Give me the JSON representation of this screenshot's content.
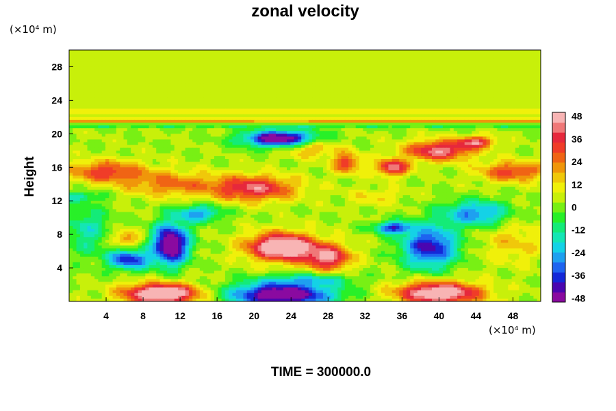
{
  "chart_data": {
    "type": "heatmap",
    "title": "zonal velocity",
    "ylabel": "Height",
    "x_unit_label": "(×10⁴ m)",
    "y_unit_label": "(×10⁴ m)",
    "footer": "TIME = 300000.0",
    "xlim": [
      0,
      51
    ],
    "ylim": [
      0,
      30
    ],
    "x_ticks": [
      4,
      8,
      12,
      16,
      20,
      24,
      28,
      32,
      36,
      40,
      44,
      48
    ],
    "y_ticks": [
      4,
      8,
      12,
      16,
      20,
      24,
      28
    ],
    "colorbar": {
      "range": [
        -50,
        50
      ],
      "ticks": [
        48,
        36,
        24,
        12,
        0,
        -12,
        -24,
        -36,
        -48
      ],
      "colors": [
        "#8a0aa0",
        "#4a06b0",
        "#1428d8",
        "#1e64f0",
        "#1ea0f0",
        "#14d2e6",
        "#14e6b4",
        "#14eb78",
        "#28f028",
        "#78f014",
        "#c8f00a",
        "#f0f00a",
        "#f0c80a",
        "#f0960a",
        "#f06414",
        "#f03c28",
        "#e6283c",
        "#f07878",
        "#f8b4b4"
      ]
    },
    "background_value": 3,
    "features": [
      {
        "x": 10,
        "y": 0.9,
        "sx": 4.0,
        "sy": 1.2,
        "v": 60
      },
      {
        "x": 23,
        "y": 0.8,
        "sx": 5.5,
        "sy": 1.4,
        "v": -60
      },
      {
        "x": 40,
        "y": 1.0,
        "sx": 4.5,
        "sy": 1.3,
        "v": 55
      },
      {
        "x": 26,
        "y": 2.6,
        "sx": 5.0,
        "sy": 0.7,
        "v": -18
      },
      {
        "x": 23,
        "y": 6.5,
        "sx": 3.6,
        "sy": 1.6,
        "v": 60
      },
      {
        "x": 28,
        "y": 5.2,
        "sx": 2.5,
        "sy": 1.5,
        "v": 40
      },
      {
        "x": 11,
        "y": 6.8,
        "sx": 1.9,
        "sy": 2.4,
        "v": -62
      },
      {
        "x": 6.5,
        "y": 5.0,
        "sx": 2.2,
        "sy": 1.2,
        "v": -42
      },
      {
        "x": 14,
        "y": 10.5,
        "sx": 2.5,
        "sy": 1.0,
        "v": -30
      },
      {
        "x": 6,
        "y": 7.5,
        "sx": 1.5,
        "sy": 1.0,
        "v": 22
      },
      {
        "x": 2,
        "y": 8.5,
        "sx": 2.5,
        "sy": 3.0,
        "v": -18
      },
      {
        "x": 39,
        "y": 6.5,
        "sx": 3.0,
        "sy": 2.5,
        "v": -45
      },
      {
        "x": 44,
        "y": 10.5,
        "sx": 3.5,
        "sy": 1.5,
        "v": -32
      },
      {
        "x": 35,
        "y": 8.8,
        "sx": 2.0,
        "sy": 0.7,
        "v": -40
      },
      {
        "x": 48,
        "y": 7.0,
        "sx": 3.5,
        "sy": 2.5,
        "v": 12
      },
      {
        "x": 4,
        "y": 15.5,
        "sx": 4.0,
        "sy": 1.3,
        "v": 30
      },
      {
        "x": 11,
        "y": 14.0,
        "sx": 5.0,
        "sy": 1.5,
        "v": 22
      },
      {
        "x": 20,
        "y": 13.5,
        "sx": 4.5,
        "sy": 1.5,
        "v": 38
      },
      {
        "x": 26,
        "y": 18.5,
        "sx": 3.0,
        "sy": 1.2,
        "v": 22
      },
      {
        "x": 23,
        "y": 19.4,
        "sx": 4.0,
        "sy": 1.0,
        "v": -60
      },
      {
        "x": 30,
        "y": 16.5,
        "sx": 1.5,
        "sy": 1.2,
        "v": 30
      },
      {
        "x": 35,
        "y": 16.0,
        "sx": 1.8,
        "sy": 1.0,
        "v": 40
      },
      {
        "x": 40,
        "y": 18.0,
        "sx": 3.5,
        "sy": 1.2,
        "v": 42
      },
      {
        "x": 44,
        "y": 19.0,
        "sx": 2.0,
        "sy": 0.7,
        "v": 35
      },
      {
        "x": 48,
        "y": 15.5,
        "sx": 3.5,
        "sy": 1.2,
        "v": 30
      },
      {
        "x": 1,
        "y": 12.5,
        "sx": 2.5,
        "sy": 0.6,
        "v": -16
      },
      {
        "x": 33,
        "y": 12.5,
        "sx": 3.0,
        "sy": 1.0,
        "v": 10
      }
    ],
    "stripes": [
      {
        "y": 21.6,
        "s": 0.28,
        "v": 18
      },
      {
        "y": 20.9,
        "s": 0.25,
        "v": -8
      },
      {
        "y": 22.6,
        "s": 0.35,
        "v": 10
      }
    ]
  }
}
